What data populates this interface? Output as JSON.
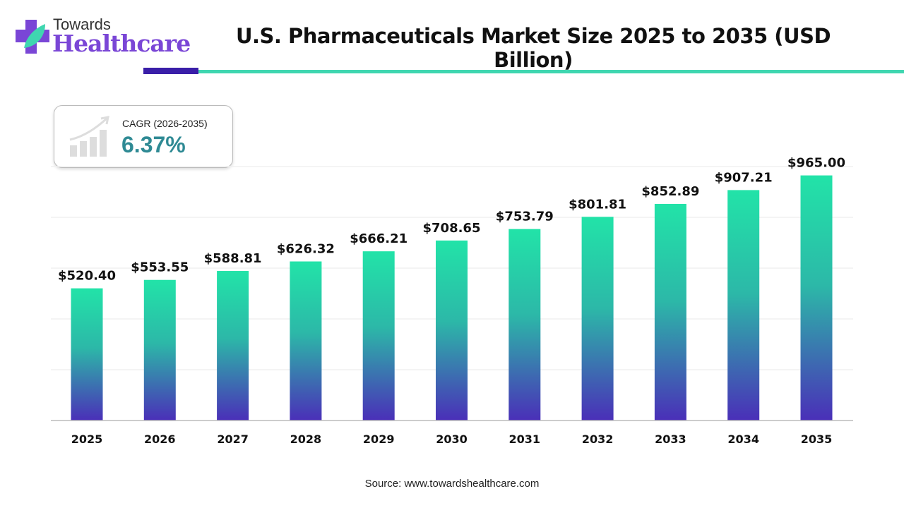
{
  "brand": {
    "line1": "Towards",
    "line2": "Healthcare"
  },
  "colors": {
    "bar_top": "#22e3a8",
    "bar_bottom": "#4a2fb8",
    "accent_dark": "#3a1ea8",
    "accent_teal": "#3fd6b0",
    "cagr_value": "#2f8a94"
  },
  "cagr": {
    "label": "CAGR (2026-2035)",
    "value": "6.37%",
    "icon": "growth-chart-icon"
  },
  "source": "Source: www.towardshealthcare.com",
  "chart_data": {
    "type": "bar",
    "title": "U.S. Pharmaceuticals Market Size 2025 to 2035 (USD Billion)",
    "xlabel": "",
    "ylabel": "",
    "ylim": [
      0,
      1000
    ],
    "grid": true,
    "categories": [
      "2025",
      "2026",
      "2027",
      "2028",
      "2029",
      "2030",
      "2031",
      "2032",
      "2033",
      "2034",
      "2035"
    ],
    "values": [
      520.4,
      553.55,
      588.81,
      626.32,
      666.21,
      708.65,
      753.79,
      801.81,
      852.89,
      907.21,
      965.0
    ],
    "data_labels": [
      "$520.40",
      "$553.55",
      "$588.81",
      "$626.32",
      "$666.21",
      "$708.65",
      "$753.79",
      "$801.81",
      "$852.89",
      "$907.21",
      "$965.00"
    ]
  }
}
